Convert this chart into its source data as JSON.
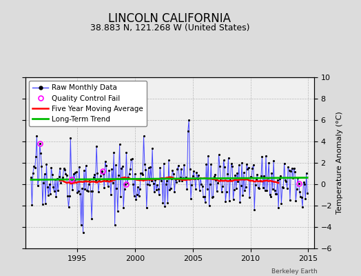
{
  "title": "LINCOLN CALIFORNIA",
  "subtitle": "38.883 N, 121.268 W (United States)",
  "credit": "Berkeley Earth",
  "ylabel": "Temperature Anomaly (°C)",
  "ylim": [
    -6,
    10
  ],
  "yticks": [
    -6,
    -4,
    -2,
    0,
    2,
    4,
    6,
    8,
    10
  ],
  "xlim": [
    1990.5,
    2015.5
  ],
  "xticks": [
    1995,
    2000,
    2005,
    2010,
    2015
  ],
  "start_year": 1991,
  "end_year": 2015,
  "seed": 17,
  "line_color": "#4444FF",
  "ma_color": "#FF0000",
  "trend_color": "#00BB00",
  "qc_color": "#FF00FF",
  "bg_color": "#DCDCDC",
  "plot_bg": "#F0F0F0",
  "title_fontsize": 12,
  "subtitle_fontsize": 9,
  "tick_fontsize": 8,
  "legend_fontsize": 7.5,
  "ylabel_fontsize": 8
}
